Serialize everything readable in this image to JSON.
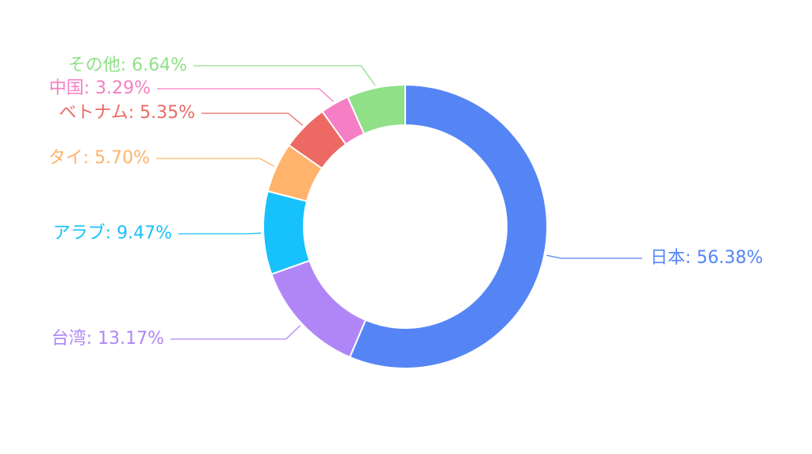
{
  "chart_data": {
    "type": "donut",
    "values": [
      56.38,
      13.17,
      9.47,
      5.7,
      5.35,
      3.29,
      6.64
    ],
    "value_labels": [
      "日本: 56.38%",
      "台湾: 13.17%",
      "アラブ: 9.47%",
      "タイ: 5.70%",
      "ベトナム: 5.35%",
      "中国: 3.29%",
      "その他: 6.64%"
    ],
    "colors": [
      "#5585f5",
      "#b086f7",
      "#17c1fb",
      "#ffb36b",
      "#ec6a63",
      "#f57ec4",
      "#8fe087"
    ]
  }
}
